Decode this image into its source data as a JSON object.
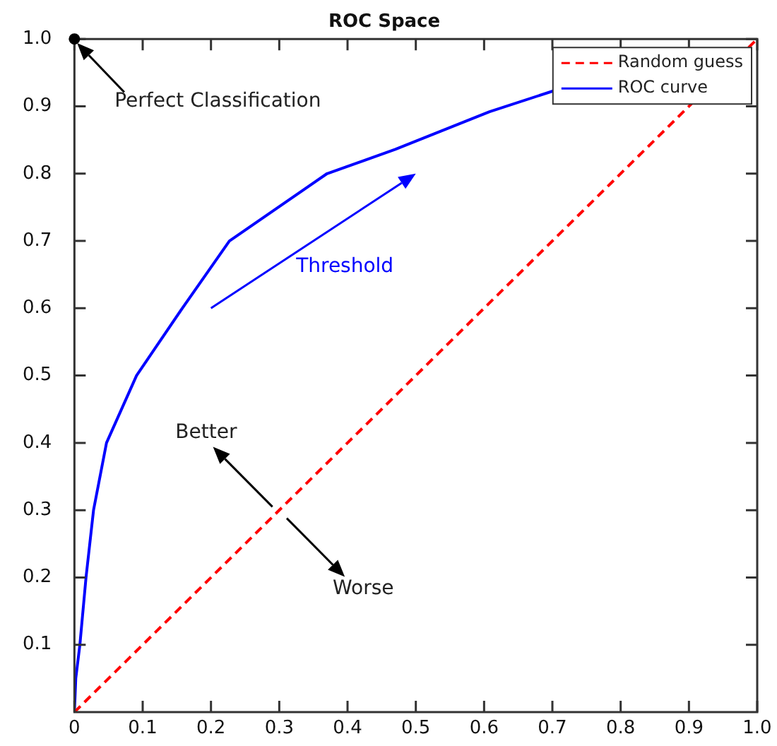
{
  "chart_data": {
    "type": "line",
    "title": "ROC Space",
    "xlim": [
      0,
      1
    ],
    "ylim": [
      0,
      1
    ],
    "xticks": [
      0,
      {
        "value": 0.1,
        "label": "0.1"
      },
      {
        "value": 0.2,
        "label": "0.2"
      },
      {
        "value": 0.3,
        "label": "0.3"
      },
      {
        "value": 0.4,
        "label": "0.4"
      },
      {
        "value": 0.5,
        "label": "0.5"
      },
      {
        "value": 0.6,
        "label": "0.6"
      },
      {
        "value": 0.7,
        "label": "0.7"
      },
      {
        "value": 0.8,
        "label": "0.8"
      },
      {
        "value": 0.9,
        "label": "0.9"
      },
      {
        "value": 1,
        "label": "1.0"
      }
    ],
    "yticks": [
      {
        "value": 0.1,
        "label": "0.1"
      },
      {
        "value": 0.2,
        "label": "0.2"
      },
      {
        "value": 0.3,
        "label": "0.3"
      },
      {
        "value": 0.4,
        "label": "0.4"
      },
      {
        "value": 0.5,
        "label": "0.5"
      },
      {
        "value": 0.6,
        "label": "0.6"
      },
      {
        "value": 0.7,
        "label": "0.7"
      },
      {
        "value": 0.8,
        "label": "0.8"
      },
      {
        "value": 0.9,
        "label": "0.9"
      },
      {
        "value": 1,
        "label": "1.0"
      }
    ],
    "grid": false,
    "legend": "top right",
    "marker": "none",
    "series": [
      {
        "name": "Random guess",
        "color": "#ff0000",
        "line_style": "dashed",
        "x": [
          0,
          1
        ],
        "values": [
          0,
          1
        ]
      },
      {
        "name": "ROC curve",
        "color": "#0000ff",
        "line_style": "solid",
        "x": [
          0,
          0.002,
          0.008,
          0.017,
          0.028,
          0.047,
          0.091,
          0.158,
          0.227,
          0.37,
          0.47,
          0.608,
          0.714
        ],
        "values": [
          0,
          0.05,
          0.1,
          0.2,
          0.3,
          0.4,
          0.5,
          0.6,
          0.7,
          0.8,
          0.836,
          0.892,
          0.927
        ]
      }
    ],
    "annotations": [
      "Perfect Classification",
      "Threshold",
      "Better",
      "Worse"
    ]
  }
}
